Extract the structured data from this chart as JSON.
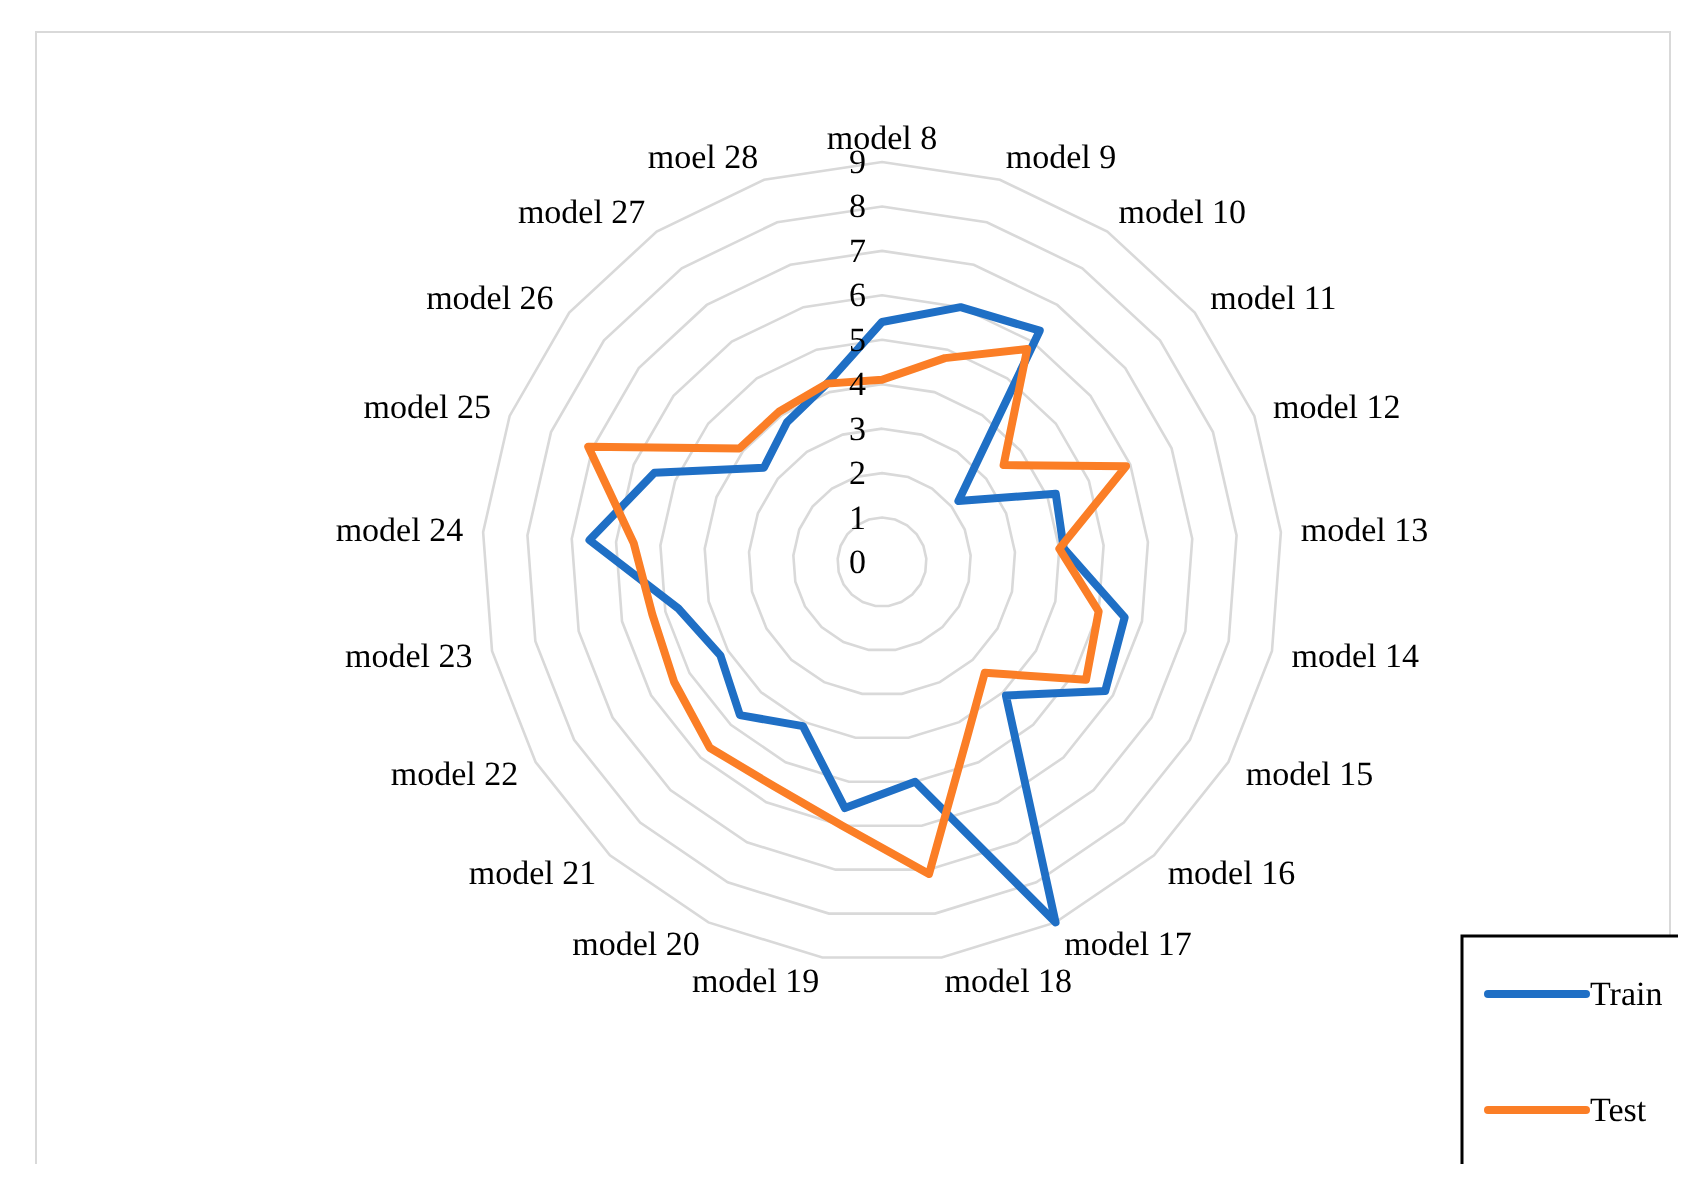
{
  "chart_data": {
    "type": "radar",
    "categories": [
      "model 8",
      "model 9",
      "model 10",
      "model 11",
      "model 12",
      "model 13",
      "model 14",
      "model 15",
      "model 16",
      "model 17",
      "model 18",
      "model 19",
      "model 20",
      "model 21",
      "model 22",
      "model 23",
      "model 24",
      "model 25",
      "model 26",
      "model 27",
      "moel 28"
    ],
    "series": [
      {
        "name": "Train",
        "color": "#1f6fc5",
        "values": [
          5.4,
          6.0,
          6.3,
          2.2,
          4.2,
          4.1,
          5.6,
          5.8,
          4.1,
          9,
          5.0,
          5.6,
          4.1,
          4.7,
          4.2,
          4.7,
          6.6,
          5.5,
          3.4,
          3.8,
          4.2
        ]
      },
      {
        "name": "Test",
        "color": "#fb7e26",
        "values": [
          4.1,
          4.8,
          5.8,
          3.5,
          5.9,
          4.0,
          5.0,
          5.3,
          3.4,
          4.4,
          7.1,
          6.0,
          5.6,
          5.7,
          5.4,
          5.3,
          5.6,
          7.1,
          4.1,
          4.1,
          4.2
        ]
      }
    ],
    "ylim": [
      0,
      9
    ],
    "yticks": [
      0,
      1,
      2,
      3,
      4,
      5,
      6,
      7,
      8,
      9
    ],
    "grid": true,
    "legend": "bottom right",
    "line_style": "solid",
    "marker": "none"
  }
}
